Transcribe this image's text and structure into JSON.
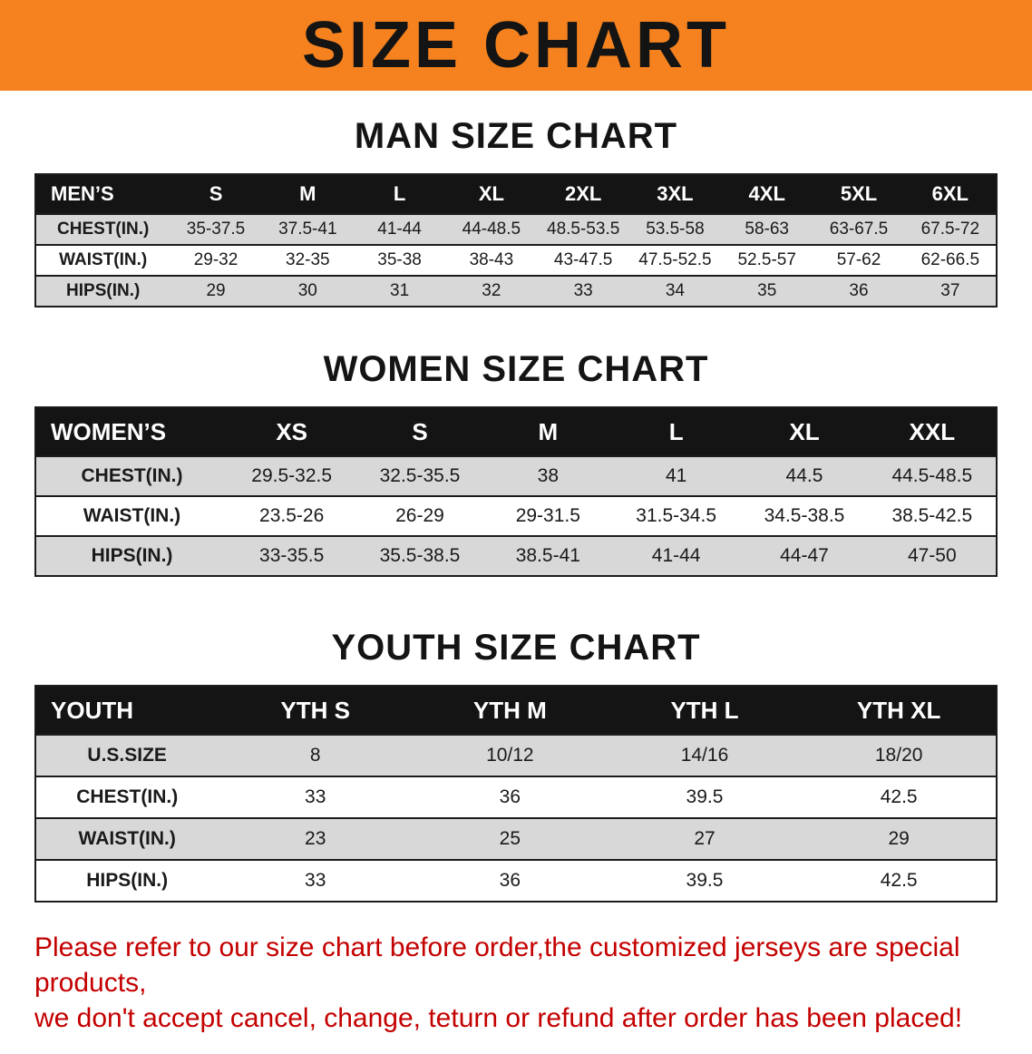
{
  "banner": {
    "title": "SIZE CHART"
  },
  "tables": [
    {
      "id": "men",
      "heading": "MAN SIZE CHART",
      "header": [
        "MEN’S",
        "S",
        "M",
        "L",
        "XL",
        "2XL",
        "3XL",
        "4XL",
        "5XL",
        "6XL"
      ],
      "rows": [
        {
          "label": "CHEST(IN.)",
          "values": [
            "35-37.5",
            "37.5-41",
            "41-44",
            "44-48.5",
            "48.5-53.5",
            "53.5-58",
            "58-63",
            "63-67.5",
            "67.5-72"
          ]
        },
        {
          "label": "WAIST(IN.)",
          "values": [
            "29-32",
            "32-35",
            "35-38",
            "38-43",
            "43-47.5",
            "47.5-52.5",
            "52.5-57",
            "57-62",
            "62-66.5"
          ]
        },
        {
          "label": "HIPS(IN.)",
          "values": [
            "29",
            "30",
            "31",
            "32",
            "33",
            "34",
            "35",
            "36",
            "37"
          ]
        }
      ]
    },
    {
      "id": "women",
      "heading": "WOMEN SIZE CHART",
      "header": [
        "WOMEN’S",
        "XS",
        "S",
        "M",
        "L",
        "XL",
        "XXL"
      ],
      "rows": [
        {
          "label": "CHEST(IN.)",
          "values": [
            "29.5-32.5",
            "32.5-35.5",
            "38",
            "41",
            "44.5",
            "44.5-48.5"
          ]
        },
        {
          "label": "WAIST(IN.)",
          "values": [
            "23.5-26",
            "26-29",
            "29-31.5",
            "31.5-34.5",
            "34.5-38.5",
            "38.5-42.5"
          ]
        },
        {
          "label": "HIPS(IN.)",
          "values": [
            "33-35.5",
            "35.5-38.5",
            "38.5-41",
            "41-44",
            "44-47",
            "47-50"
          ]
        }
      ]
    },
    {
      "id": "youth",
      "heading": "YOUTH SIZE CHART",
      "header": [
        "YOUTH",
        "YTH S",
        "YTH M",
        "YTH L",
        "YTH XL"
      ],
      "rows": [
        {
          "label": "U.S.SIZE",
          "values": [
            "8",
            "10/12",
            "14/16",
            "18/20"
          ]
        },
        {
          "label": "CHEST(IN.)",
          "values": [
            "33",
            "36",
            "39.5",
            "42.5"
          ]
        },
        {
          "label": "WAIST(IN.)",
          "values": [
            "23",
            "25",
            "27",
            "29"
          ]
        },
        {
          "label": "HIPS(IN.)",
          "values": [
            "33",
            "36",
            "39.5",
            "42.5"
          ]
        }
      ]
    }
  ],
  "footer": {
    "line1": "Please refer to our size chart before order,the customized jerseys are special products,",
    "line2": "we don't accept cancel, change, teturn or refund after order has been placed!"
  },
  "colors": {
    "banner_orange": "#f5821f",
    "table_header_black": "#141414",
    "row_gray": "#d8d8d8",
    "notice_red": "#c40000"
  }
}
